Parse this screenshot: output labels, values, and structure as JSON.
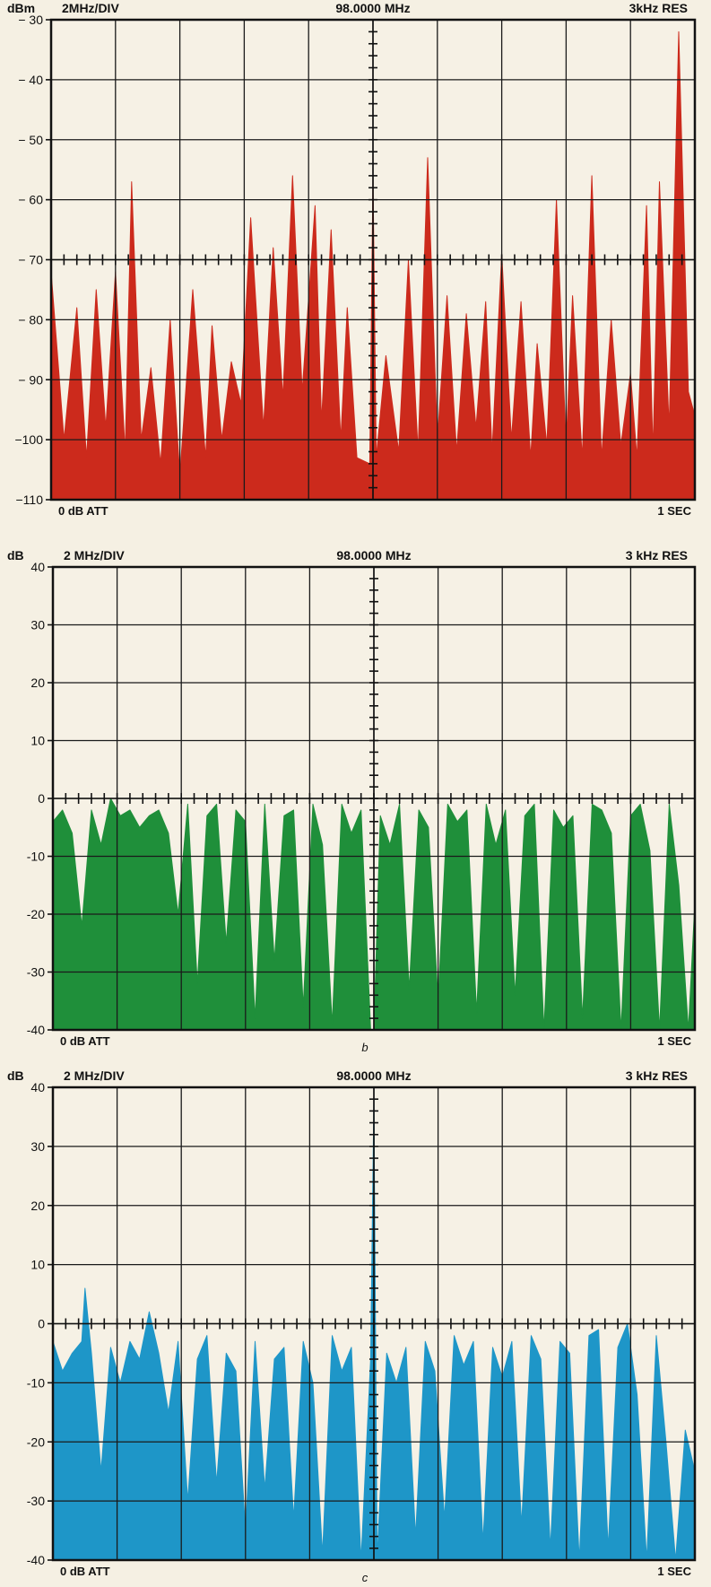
{
  "chart_data": [
    {
      "type": "area",
      "id": "a",
      "panel_label": "",
      "color": "#cc2a1c",
      "y_unit": "dBm",
      "span": "2MHz/DIV",
      "center": "98.0000 MHz",
      "resolution": "3kHz RES",
      "attenuation": "0 dB  ATT",
      "sweep": "1 SEC",
      "ylim": [
        -110,
        -30
      ],
      "ytick_labels": [
        "− 30",
        "− 40",
        "− 50",
        "− 60",
        "− 70",
        "− 80",
        "− 90",
        "−100",
        "−110"
      ],
      "ruler_level": -70,
      "baseline": -110,
      "x_unit": "divisions from left edge (0–10)",
      "x": [
        0,
        0.2,
        0.4,
        0.55,
        0.7,
        0.85,
        1.0,
        1.15,
        1.25,
        1.4,
        1.55,
        1.7,
        1.85,
        2.0,
        2.2,
        2.4,
        2.5,
        2.65,
        2.8,
        2.95,
        3.1,
        3.3,
        3.45,
        3.6,
        3.75,
        3.9,
        4.1,
        4.2,
        4.35,
        4.5,
        4.6,
        4.75,
        4.95,
        5.0,
        5.05,
        5.2,
        5.4,
        5.55,
        5.7,
        5.85,
        6.0,
        6.15,
        6.3,
        6.45,
        6.6,
        6.75,
        6.85,
        7.0,
        7.15,
        7.3,
        7.45,
        7.55,
        7.7,
        7.85,
        8.0,
        8.1,
        8.25,
        8.4,
        8.55,
        8.7,
        8.85,
        9.0,
        9.1,
        9.25,
        9.35,
        9.45,
        9.6,
        9.75,
        9.9,
        10.0
      ],
      "y": [
        -72,
        -100,
        -78,
        -103,
        -75,
        -98,
        -72,
        -102,
        -57,
        -100,
        -88,
        -104,
        -80,
        -106,
        -75,
        -103,
        -81,
        -100,
        -87,
        -94,
        -63,
        -98,
        -68,
        -93,
        -56,
        -92,
        -61,
        -97,
        -65,
        -100,
        -78,
        -103,
        -104,
        -56,
        -103,
        -86,
        -102,
        -70,
        -102,
        -53,
        -100,
        -76,
        -102,
        -79,
        -98,
        -77,
        -102,
        -69,
        -100,
        -77,
        -103,
        -84,
        -101,
        -60,
        -101,
        -76,
        -103,
        -56,
        -103,
        -80,
        -101,
        -89,
        -103,
        -61,
        -102,
        -57,
        -98,
        -32,
        -92,
        -96
      ]
    },
    {
      "type": "area",
      "id": "b",
      "panel_label": "b",
      "color": "#1f8f3a",
      "y_unit": "dB",
      "span": "2 MHz/DIV",
      "center": "98.0000 MHz",
      "resolution": "3 kHz RES",
      "attenuation": "0 dB  ATT",
      "sweep": "1 SEC",
      "ylim": [
        -40,
        40
      ],
      "ytick_labels": [
        "40",
        "30",
        "20",
        "10",
        "0",
        "-10",
        "-20",
        "-30",
        "-40"
      ],
      "ruler_level": 0,
      "baseline": -40,
      "x_unit": "divisions from left edge (0–10)",
      "x": [
        0,
        0.15,
        0.3,
        0.45,
        0.6,
        0.75,
        0.9,
        1.05,
        1.2,
        1.35,
        1.5,
        1.65,
        1.8,
        1.95,
        2.1,
        2.25,
        2.4,
        2.55,
        2.7,
        2.85,
        3.0,
        3.15,
        3.3,
        3.45,
        3.6,
        3.75,
        3.9,
        4.05,
        4.2,
        4.35,
        4.5,
        4.65,
        4.8,
        4.95,
        5.0,
        5.1,
        5.25,
        5.4,
        5.55,
        5.7,
        5.85,
        6.0,
        6.15,
        6.3,
        6.45,
        6.6,
        6.75,
        6.9,
        7.05,
        7.2,
        7.35,
        7.5,
        7.65,
        7.8,
        7.95,
        8.1,
        8.25,
        8.4,
        8.55,
        8.7,
        8.85,
        9.0,
        9.15,
        9.3,
        9.45,
        9.6,
        9.75,
        9.9,
        10.0
      ],
      "y": [
        -4,
        -2,
        -6,
        -22,
        -2,
        -8,
        0,
        -3,
        -2,
        -5,
        -3,
        -2,
        -6,
        -20,
        -1,
        -32,
        -3,
        -1,
        -25,
        -2,
        -4,
        -38,
        -1,
        -28,
        -3,
        -2,
        -36,
        -1,
        -8,
        -39,
        -1,
        -6,
        -2,
        -40,
        -40,
        -3,
        -8,
        -1,
        -33,
        -2,
        -5,
        -35,
        -1,
        -4,
        -2,
        -37,
        -1,
        -8,
        -2,
        -34,
        -3,
        -1,
        -40,
        -2,
        -5,
        -3,
        -38,
        -1,
        -2,
        -6,
        -40,
        -3,
        -1,
        -9,
        -40,
        -1,
        -15,
        -40,
        -18
      ]
    },
    {
      "type": "area",
      "id": "c",
      "panel_label": "c",
      "color": "#1e96c8",
      "y_unit": "dB",
      "span": "2 MHz/DIV",
      "center": "98.0000 MHz",
      "resolution": "3 kHz RES",
      "attenuation": "0 dB  ATT",
      "sweep": "1 SEC",
      "ylim": [
        -40,
        40
      ],
      "ytick_labels": [
        "40",
        "30",
        "20",
        "10",
        "0",
        "-10",
        "-20",
        "-30",
        "-40"
      ],
      "ruler_level": 0,
      "baseline": -40,
      "x_unit": "divisions from left edge (0–10)",
      "x": [
        0,
        0.15,
        0.3,
        0.45,
        0.5,
        0.6,
        0.75,
        0.9,
        1.05,
        1.2,
        1.35,
        1.5,
        1.65,
        1.8,
        1.95,
        2.1,
        2.25,
        2.4,
        2.55,
        2.7,
        2.85,
        3.0,
        3.15,
        3.3,
        3.45,
        3.6,
        3.75,
        3.9,
        4.05,
        4.2,
        4.35,
        4.5,
        4.65,
        4.8,
        4.95,
        5.0,
        5.05,
        5.2,
        5.35,
        5.5,
        5.65,
        5.8,
        5.95,
        6.1,
        6.25,
        6.4,
        6.55,
        6.7,
        6.85,
        7.0,
        7.15,
        7.3,
        7.45,
        7.6,
        7.75,
        7.9,
        8.05,
        8.2,
        8.35,
        8.5,
        8.65,
        8.8,
        8.95,
        9.1,
        9.25,
        9.4,
        9.55,
        9.7,
        9.85,
        10.0
      ],
      "y": [
        -3,
        -8,
        -5,
        -3,
        6,
        -5,
        -25,
        -4,
        -10,
        -3,
        -6,
        2,
        -5,
        -15,
        -3,
        -30,
        -6,
        -2,
        -27,
        -5,
        -8,
        -35,
        -3,
        -28,
        -6,
        -4,
        -33,
        -3,
        -10,
        -39,
        -2,
        -8,
        -4,
        -40,
        -6,
        38,
        -40,
        -5,
        -10,
        -4,
        -36,
        -3,
        -8,
        -33,
        -2,
        -7,
        -3,
        -37,
        -4,
        -9,
        -3,
        -34,
        -2,
        -6,
        -38,
        -3,
        -5,
        -40,
        -2,
        -1,
        -38,
        -4,
        0,
        -12,
        -40,
        -2,
        -20,
        -40,
        -18,
        -25
      ]
    }
  ]
}
